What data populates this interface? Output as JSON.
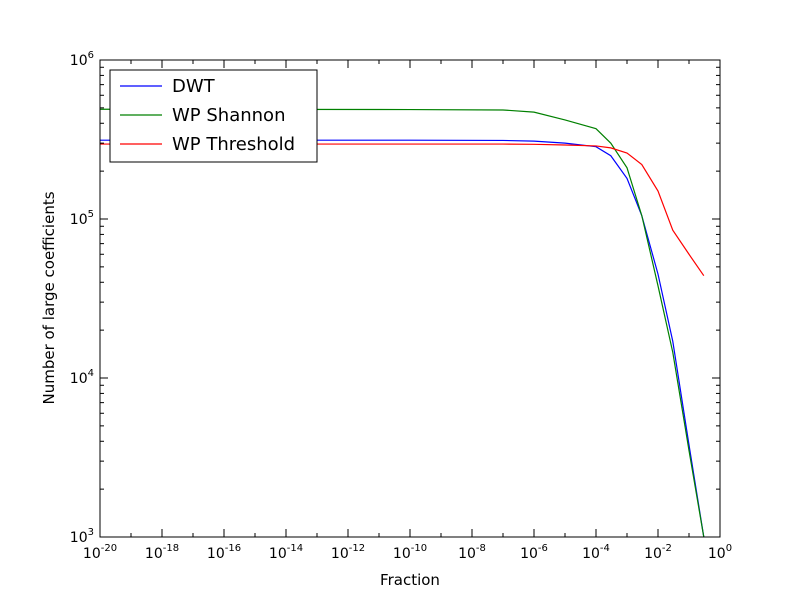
{
  "chart_data": {
    "type": "line",
    "title": "",
    "xlabel": "Fraction",
    "ylabel": "Number of large coefficients",
    "xscale": "log",
    "yscale": "log",
    "xlim": [
      1e-20,
      1
    ],
    "ylim": [
      1000,
      1000000
    ],
    "grid": false,
    "legend_position": "top-left",
    "x_ticks": [
      {
        "base": "10",
        "exp": "-20",
        "value": 1e-20
      },
      {
        "base": "10",
        "exp": "-18",
        "value": 1e-18
      },
      {
        "base": "10",
        "exp": "-16",
        "value": 1e-16
      },
      {
        "base": "10",
        "exp": "-14",
        "value": 1e-14
      },
      {
        "base": "10",
        "exp": "-12",
        "value": 1e-12
      },
      {
        "base": "10",
        "exp": "-10",
        "value": 1e-10
      },
      {
        "base": "10",
        "exp": "-8",
        "value": 1e-08
      },
      {
        "base": "10",
        "exp": "-6",
        "value": 1e-06
      },
      {
        "base": "10",
        "exp": "-4",
        "value": 0.0001
      },
      {
        "base": "10",
        "exp": "-2",
        "value": 0.01
      },
      {
        "base": "10",
        "exp": "0",
        "value": 1
      }
    ],
    "y_ticks": [
      {
        "base": "10",
        "exp": "3",
        "value": 1000
      },
      {
        "base": "10",
        "exp": "4",
        "value": 10000
      },
      {
        "base": "10",
        "exp": "5",
        "value": 100000
      },
      {
        "base": "10",
        "exp": "6",
        "value": 1000000
      }
    ],
    "x": [
      1e-20,
      1e-10,
      1e-07,
      1e-06,
      1e-05,
      0.0001,
      0.0003,
      0.001,
      0.003,
      0.01,
      0.03,
      0.1,
      0.3
    ],
    "series": [
      {
        "name": "DWT",
        "color": "#0000ff",
        "values": [
          313000,
          313000,
          312000,
          309000,
          300000,
          285000,
          250000,
          180000,
          105000,
          45000,
          17000,
          3800,
          1000
        ]
      },
      {
        "name": "WP Shannon",
        "color": "#008000",
        "values": [
          490000,
          488000,
          485000,
          470000,
          420000,
          370000,
          300000,
          210000,
          105000,
          38000,
          14500,
          3500,
          1000
        ]
      },
      {
        "name": "WP Threshold",
        "color": "#ff0000",
        "values": [
          296000,
          296000,
          296000,
          295000,
          292000,
          288000,
          280000,
          260000,
          220000,
          150000,
          85000,
          60000,
          44000
        ]
      }
    ]
  }
}
